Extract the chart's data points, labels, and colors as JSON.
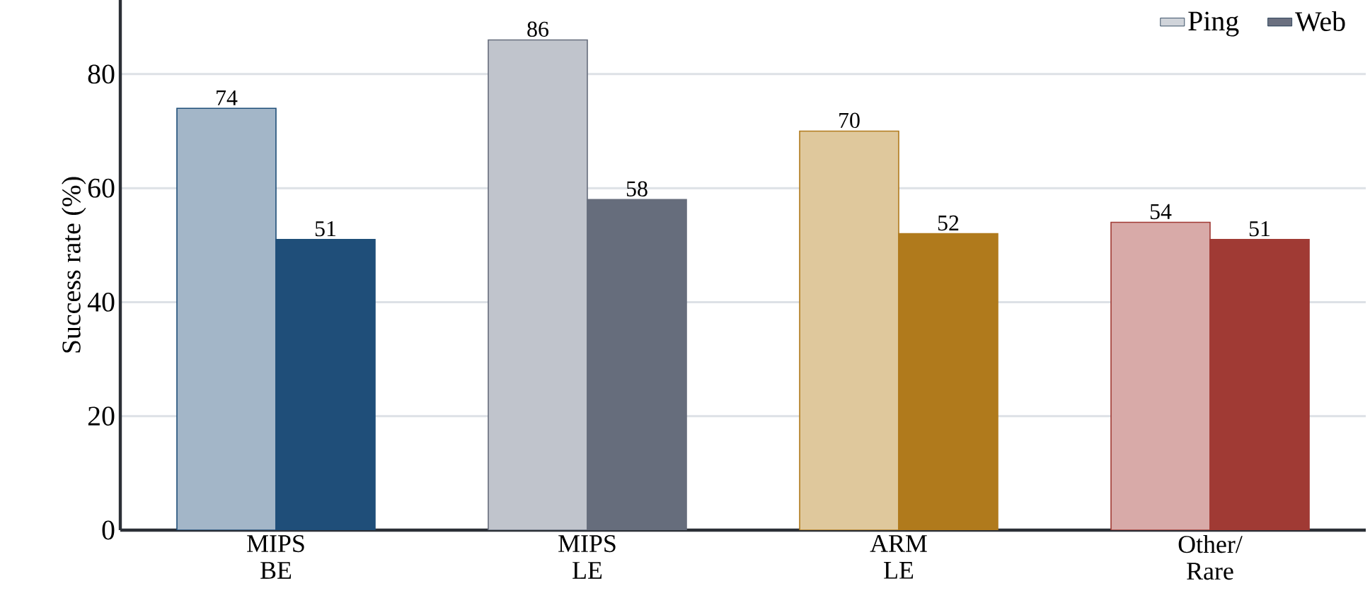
{
  "chart_data": {
    "type": "bar",
    "ylabel": "Success rate (%)",
    "categories": [
      "MIPS BE",
      "MIPS LE",
      "ARM LE",
      "Other/ Rare"
    ],
    "series": [
      {
        "name": "Ping",
        "color": "#d0d4da",
        "colors": [
          "#a3b6c8",
          "#c0c4cc",
          "#dfc89c",
          "#d8aaa8"
        ],
        "values": [
          74,
          86,
          70,
          54
        ],
        "value_labels": [
          "74",
          "86",
          "70",
          "54"
        ]
      },
      {
        "name": "Web",
        "color": "#6b7080",
        "colors": [
          "#1f4e79",
          "#666d7c",
          "#b07a1c",
          "#a03a34"
        ],
        "values": [
          51,
          58,
          52,
          51
        ],
        "value_labels": [
          "51",
          "58",
          "52",
          "51"
        ]
      }
    ],
    "ylim": [
      0,
      93
    ],
    "yticks": [
      0,
      20,
      40,
      60,
      80
    ],
    "grid": "y",
    "legend": "top right"
  }
}
